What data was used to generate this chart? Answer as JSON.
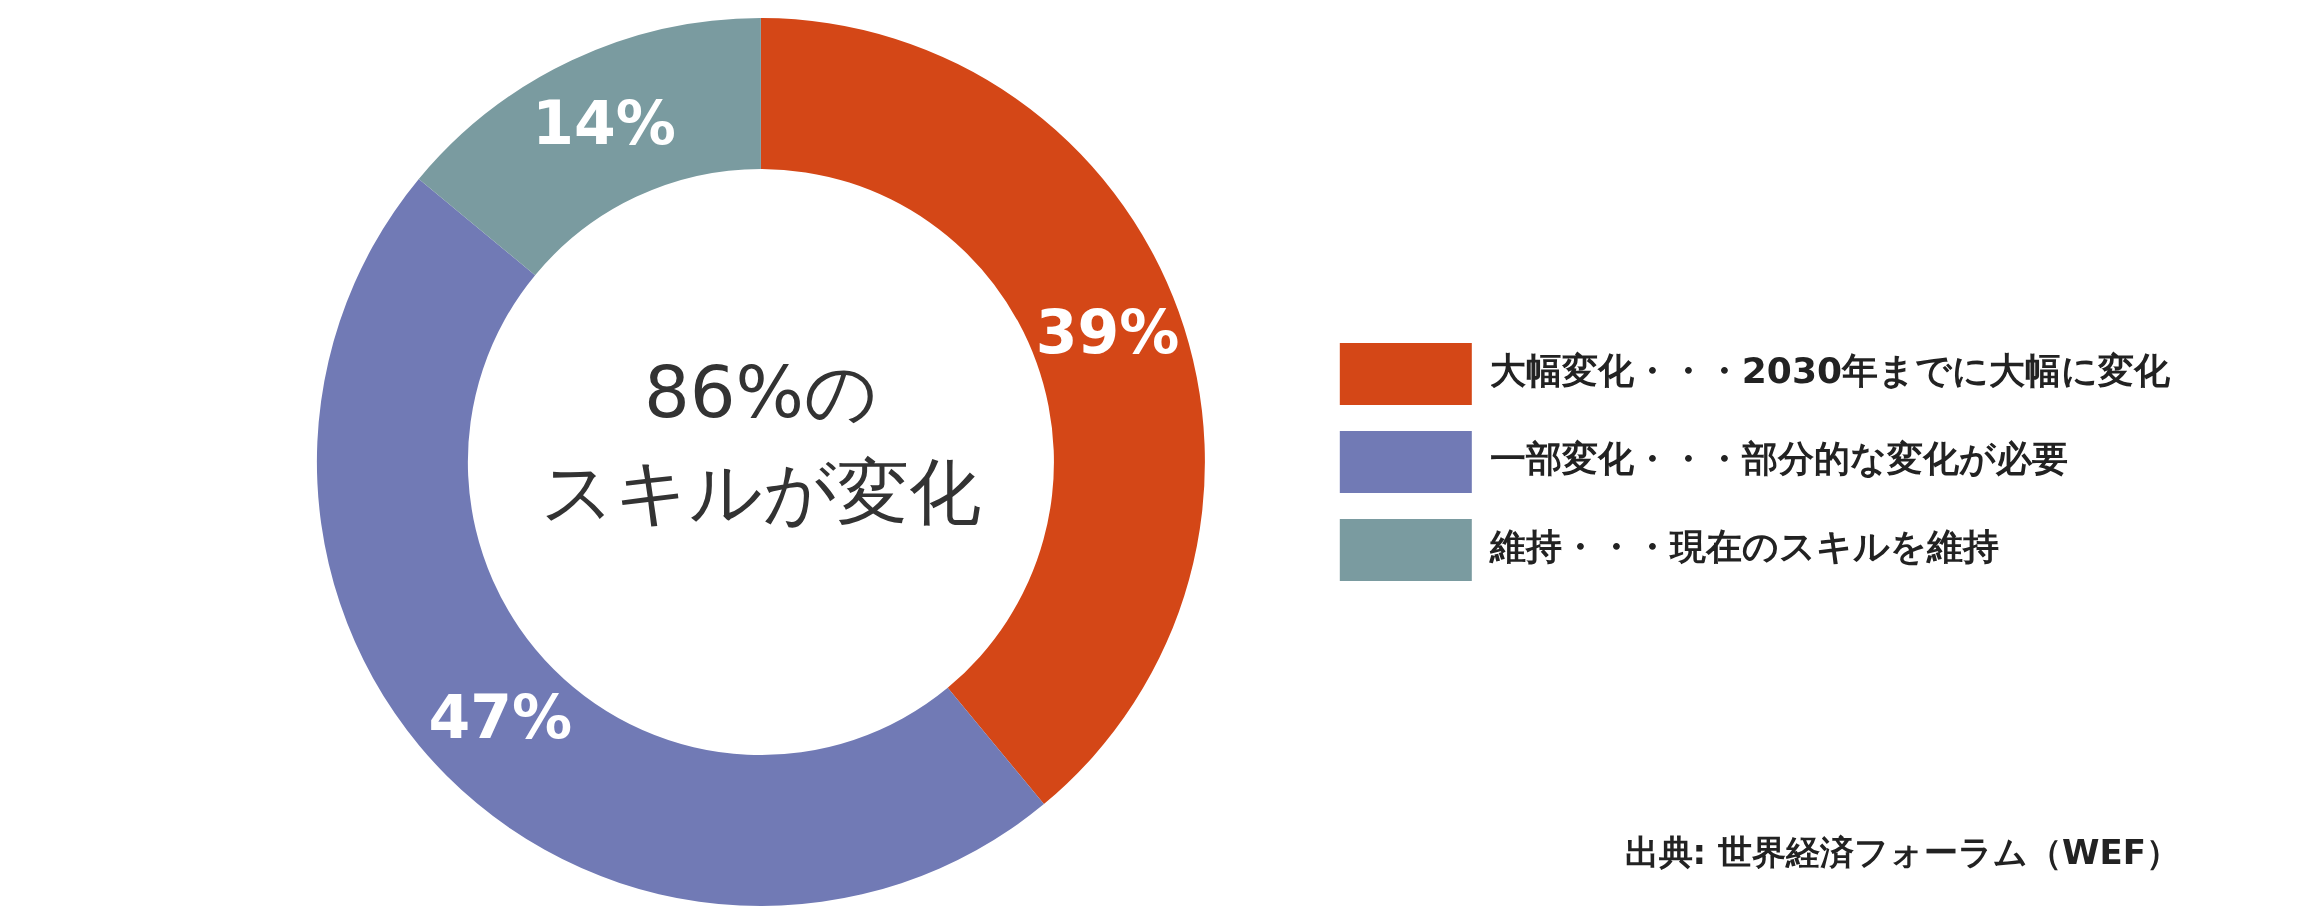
{
  "chart_data": {
    "type": "donut",
    "title": "86%の",
    "subtitle": "スキルが変化",
    "categories": [
      "大幅変化・・・2030年までに大幅に変化",
      "一部変化・・・部分的な変化が必要",
      "維持・・・現在のスキルを維持"
    ],
    "values": [
      39,
      47,
      14
    ],
    "colors": [
      "#d44717",
      "#717ab5",
      "#7a9ba0"
    ],
    "value_labels": [
      "39%",
      "47%",
      "14%"
    ],
    "legend": "right",
    "annotations": [
      "出典: 世界経済フォーラム（WEF）"
    ]
  }
}
